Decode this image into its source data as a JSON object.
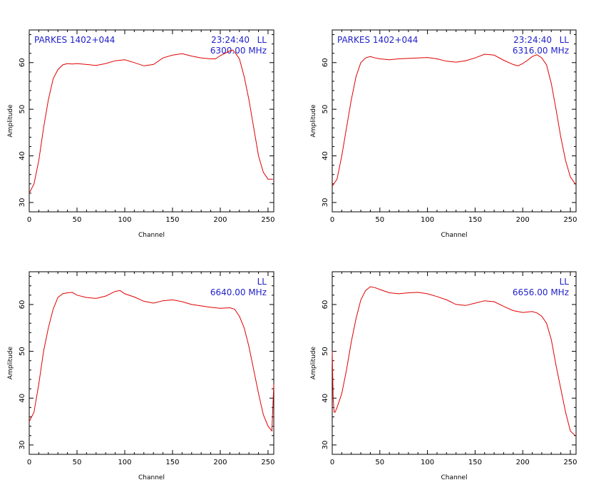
{
  "chart_data": [
    {
      "type": "line",
      "xlabel": "Channel",
      "ylabel": "Amplitude",
      "xlim": [
        0,
        256
      ],
      "ylim": [
        28,
        67
      ],
      "xticks": [
        0,
        50,
        100,
        150,
        200,
        250
      ],
      "yticks": [
        30,
        40,
        50,
        60
      ],
      "annotations": {
        "source": "PARKES 1402+044",
        "time": "23:24:40",
        "pol": "LL",
        "freq": "6300.00 MHz"
      },
      "series": [
        {
          "color": "#e00000",
          "x": [
            0,
            5,
            10,
            15,
            20,
            25,
            30,
            35,
            40,
            45,
            50,
            60,
            70,
            80,
            90,
            100,
            110,
            120,
            130,
            140,
            150,
            160,
            170,
            180,
            190,
            195,
            200,
            205,
            210,
            213,
            216,
            220,
            225,
            230,
            235,
            240,
            245,
            250,
            255
          ],
          "y": [
            32,
            34,
            39,
            46,
            52,
            56.5,
            58.5,
            59.5,
            59.8,
            59.7,
            59.8,
            59.6,
            59.4,
            59.8,
            60.4,
            60.6,
            60.0,
            59.3,
            59.6,
            61.0,
            61.6,
            61.9,
            61.4,
            61.0,
            60.8,
            60.8,
            61.5,
            62.0,
            62.5,
            62.7,
            62.0,
            60.8,
            57.0,
            52.0,
            46.0,
            40.0,
            36.5,
            35.0,
            35.0
          ]
        }
      ]
    },
    {
      "type": "line",
      "xlabel": "Channel",
      "ylabel": "Amplitude",
      "xlim": [
        0,
        256
      ],
      "ylim": [
        28,
        67
      ],
      "xticks": [
        0,
        50,
        100,
        150,
        200,
        250
      ],
      "yticks": [
        30,
        40,
        50,
        60
      ],
      "annotations": {
        "source": "PARKES 1402+044",
        "time": "23:24:40",
        "pol": "LL",
        "freq": "6316.00 MHz"
      },
      "series": [
        {
          "color": "#e00000",
          "x": [
            0,
            5,
            10,
            15,
            20,
            25,
            30,
            35,
            40,
            45,
            50,
            60,
            70,
            80,
            90,
            100,
            110,
            120,
            130,
            140,
            150,
            160,
            170,
            180,
            190,
            195,
            200,
            205,
            210,
            215,
            220,
            225,
            230,
            235,
            240,
            245,
            250,
            255
          ],
          "y": [
            33.5,
            35,
            40,
            46,
            52,
            57,
            60,
            61,
            61.3,
            61.0,
            60.8,
            60.6,
            60.8,
            60.9,
            61.0,
            61.1,
            60.8,
            60.3,
            60.1,
            60.4,
            61.0,
            61.8,
            61.6,
            60.5,
            59.6,
            59.3,
            59.8,
            60.5,
            61.3,
            61.7,
            61.0,
            59.5,
            55.5,
            50.0,
            44.0,
            39.0,
            35.5,
            34.0
          ]
        }
      ]
    },
    {
      "type": "line",
      "xlabel": "Channel",
      "ylabel": "Amplitude",
      "xlim": [
        0,
        256
      ],
      "ylim": [
        28,
        67
      ],
      "xticks": [
        0,
        50,
        100,
        150,
        200,
        250
      ],
      "yticks": [
        30,
        40,
        50,
        60
      ],
      "annotations": {
        "pol": "LL",
        "freq": "6640.00 MHz"
      },
      "series": [
        {
          "color": "#e00000",
          "x": [
            0,
            5,
            10,
            15,
            20,
            25,
            30,
            35,
            40,
            45,
            50,
            60,
            70,
            80,
            90,
            95,
            100,
            110,
            120,
            130,
            140,
            150,
            160,
            170,
            180,
            190,
            200,
            210,
            215,
            220,
            225,
            230,
            235,
            240,
            245,
            250,
            254,
            255,
            256
          ],
          "y": [
            35,
            37,
            43,
            50,
            55,
            59,
            61.5,
            62.3,
            62.5,
            62.6,
            62.0,
            61.5,
            61.3,
            61.8,
            62.8,
            63.0,
            62.3,
            61.6,
            60.7,
            60.3,
            60.8,
            61.0,
            60.6,
            60.0,
            59.7,
            59.4,
            59.2,
            59.3,
            59.0,
            57.5,
            55.0,
            51.0,
            46.0,
            41.0,
            36.5,
            34.0,
            33.0,
            38.0,
            43.0
          ]
        }
      ]
    },
    {
      "type": "line",
      "xlabel": "Channel",
      "ylabel": "Amplitude",
      "xlim": [
        0,
        256
      ],
      "ylim": [
        28,
        67
      ],
      "xticks": [
        0,
        50,
        100,
        150,
        200,
        250
      ],
      "yticks": [
        30,
        40,
        50,
        60
      ],
      "annotations": {
        "pol": "LL",
        "freq": "6656.00 MHz"
      },
      "series": [
        {
          "color": "#e00000",
          "x": [
            0,
            1,
            2,
            3,
            5,
            10,
            15,
            20,
            25,
            30,
            35,
            40,
            45,
            50,
            60,
            70,
            80,
            90,
            100,
            110,
            120,
            130,
            140,
            150,
            160,
            170,
            180,
            190,
            200,
            210,
            215,
            220,
            225,
            230,
            235,
            240,
            245,
            250,
            255
          ],
          "y": [
            50,
            40,
            37,
            37,
            38,
            41,
            46,
            52,
            57,
            61,
            63,
            63.8,
            63.6,
            63.2,
            62.5,
            62.3,
            62.5,
            62.6,
            62.3,
            61.7,
            61.0,
            60.0,
            59.8,
            60.3,
            60.8,
            60.6,
            59.6,
            58.7,
            58.3,
            58.5,
            58.2,
            57.5,
            56.0,
            52.5,
            47.0,
            42.0,
            37.0,
            33.0,
            32.0
          ]
        }
      ]
    }
  ]
}
